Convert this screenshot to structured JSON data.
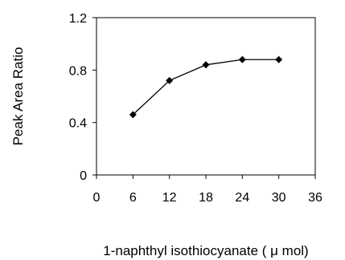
{
  "chart_data": {
    "type": "line",
    "title": "",
    "xlabel": "1-naphthyl isothiocyanate ( μ mol)",
    "ylabel": "Peak Area Ratio",
    "x": [
      6,
      12,
      18,
      24,
      30
    ],
    "series": [
      {
        "values": [
          0.46,
          0.72,
          0.84,
          0.88,
          0.88
        ]
      }
    ],
    "xlim": [
      0,
      36
    ],
    "ylim": [
      0,
      1.2
    ],
    "x_ticks": [
      0,
      6,
      12,
      18,
      24,
      30,
      36
    ],
    "y_ticks": [
      0,
      0.4,
      0.8,
      1.2
    ],
    "x_tick_labels": [
      "0",
      "6",
      "12",
      "18",
      "24",
      "30",
      "36"
    ],
    "y_tick_labels": [
      "0",
      "0.4",
      "0.8",
      "1.2"
    ],
    "grid": false,
    "marker": "diamond",
    "colors": {
      "line": "#000000",
      "axis": "#000000",
      "background": "#ffffff"
    }
  }
}
